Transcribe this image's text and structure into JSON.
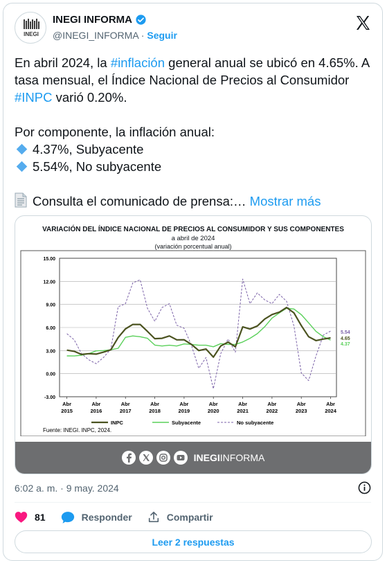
{
  "account": {
    "name": "INEGI INFORMA",
    "handle": "@INEGI_INFORMA",
    "separator": " · ",
    "follow_label": "Seguir",
    "avatar_text": "INEGI"
  },
  "tweet": {
    "line1_a": "En abril 2024, la ",
    "hashtag1": "#inflación",
    "line1_b": " general anual se ubicó en 4.65%. A tasa mensual, el Índice Nacional de Precios al Consumidor ",
    "hashtag2": "#INPC",
    "line1_c": " varió 0.20%.",
    "para2": "Por componente, la inflación anual:",
    "bullet1": "4.37%, Subyacente",
    "bullet2": "5.54%, No subyacente",
    "para3": "Consulta el comunicado de prensa:…",
    "show_more": "Mostrar más"
  },
  "chart_data": {
    "type": "line",
    "title": "VARIACIÓN DEL ÍNDICE NACIONAL DE PRECIOS AL CONSUMIDOR Y SUS COMPONENTES",
    "subtitle1": "a abril de 2024",
    "subtitle2": "(variación porcentual anual)",
    "yticks": [
      "15.00",
      "12.00",
      "9.00",
      "6.00",
      "3.00",
      "0.00",
      "-3.00"
    ],
    "ylim": [
      -3,
      15
    ],
    "xticks": [
      {
        "top": "Abr",
        "bottom": "2015"
      },
      {
        "top": "Abr",
        "bottom": "2016"
      },
      {
        "top": "Abr",
        "bottom": "2017"
      },
      {
        "top": "Abr",
        "bottom": "2018"
      },
      {
        "top": "Abr",
        "bottom": "2019"
      },
      {
        "top": "Abr",
        "bottom": "2020"
      },
      {
        "top": "Abr",
        "bottom": "2021"
      },
      {
        "top": "Abr",
        "bottom": "2022"
      },
      {
        "top": "Abr",
        "bottom": "2023"
      },
      {
        "top": "Abr",
        "bottom": "2024"
      }
    ],
    "end_labels": {
      "no_subyacente": "5.54",
      "inpc": "4.65",
      "subyacente": "4.37"
    },
    "series": [
      {
        "name": "INPC",
        "color": "#4b5320",
        "x": [
          2015.25,
          2015.5,
          2015.75,
          2016.0,
          2016.25,
          2016.5,
          2016.75,
          2017.0,
          2017.25,
          2017.5,
          2017.75,
          2018.0,
          2018.25,
          2018.5,
          2018.75,
          2019.0,
          2019.25,
          2019.5,
          2019.75,
          2020.0,
          2020.25,
          2020.5,
          2020.75,
          2021.0,
          2021.25,
          2021.5,
          2021.75,
          2022.0,
          2022.25,
          2022.5,
          2022.75,
          2023.0,
          2023.25,
          2023.5,
          2023.75,
          2024.0,
          2024.25
        ],
        "values": [
          3.06,
          2.9,
          2.5,
          2.6,
          2.54,
          2.8,
          3.1,
          4.7,
          5.82,
          6.4,
          6.4,
          5.5,
          4.55,
          4.6,
          4.9,
          4.4,
          4.41,
          3.8,
          3.0,
          3.2,
          2.15,
          3.6,
          4.1,
          3.5,
          6.08,
          5.8,
          6.2,
          7.1,
          7.68,
          8.0,
          8.6,
          7.9,
          6.25,
          4.8,
          4.3,
          4.5,
          4.65
        ]
      },
      {
        "name": "Subyacente",
        "color": "#5ad05a",
        "x": [
          2015.25,
          2015.5,
          2015.75,
          2016.0,
          2016.25,
          2016.5,
          2016.75,
          2017.0,
          2017.25,
          2017.5,
          2017.75,
          2018.0,
          2018.25,
          2018.5,
          2018.75,
          2019.0,
          2019.25,
          2019.5,
          2019.75,
          2020.0,
          2020.25,
          2020.5,
          2020.75,
          2021.0,
          2021.25,
          2021.5,
          2021.75,
          2022.0,
          2022.25,
          2022.5,
          2022.75,
          2023.0,
          2023.25,
          2023.5,
          2023.75,
          2024.0,
          2024.25
        ],
        "values": [
          2.31,
          2.3,
          2.4,
          2.6,
          2.97,
          3.0,
          3.1,
          3.3,
          4.72,
          4.9,
          4.8,
          4.6,
          3.71,
          3.6,
          3.7,
          3.6,
          3.87,
          3.8,
          3.7,
          3.7,
          3.5,
          3.9,
          3.8,
          3.8,
          4.12,
          4.6,
          5.2,
          6.1,
          7.22,
          7.9,
          8.5,
          8.4,
          7.67,
          6.6,
          5.5,
          4.8,
          4.37
        ]
      },
      {
        "name": "No subyacente",
        "color": "#7b62a8",
        "x": [
          2015.25,
          2015.5,
          2015.75,
          2016.0,
          2016.25,
          2016.5,
          2016.75,
          2017.0,
          2017.25,
          2017.5,
          2017.75,
          2018.0,
          2018.25,
          2018.5,
          2018.75,
          2019.0,
          2019.25,
          2019.5,
          2019.75,
          2020.0,
          2020.25,
          2020.5,
          2020.75,
          2021.0,
          2021.25,
          2021.5,
          2021.75,
          2022.0,
          2022.25,
          2022.5,
          2022.75,
          2023.0,
          2023.25,
          2023.5,
          2023.75,
          2024.0,
          2024.25
        ],
        "values": [
          5.2,
          4.4,
          2.6,
          1.8,
          1.3,
          2.1,
          3.2,
          8.7,
          9.1,
          11.8,
          12.2,
          8.5,
          6.8,
          8.6,
          9.1,
          6.3,
          5.9,
          3.7,
          0.7,
          2.1,
          -1.96,
          2.6,
          4.5,
          2.8,
          12.3,
          9.1,
          10.5,
          9.6,
          9.1,
          10.3,
          9.4,
          6.2,
          0.1,
          -0.9,
          2.3,
          5.0,
          5.54
        ]
      }
    ],
    "source": "Fuente: INEGI. INPC, 2024."
  },
  "media_footer": {
    "brand_bold": "INEGI",
    "brand_rest": "INFORMA"
  },
  "meta": {
    "timestamp": "6:02 a. m. · 9 may. 2024"
  },
  "actions": {
    "likes_count": "81",
    "reply_label": "Responder",
    "share_label": "Compartir",
    "read_replies": "Leer 2 respuestas"
  },
  "colors": {
    "accent": "#1d9bf0",
    "like": "#f91880"
  }
}
